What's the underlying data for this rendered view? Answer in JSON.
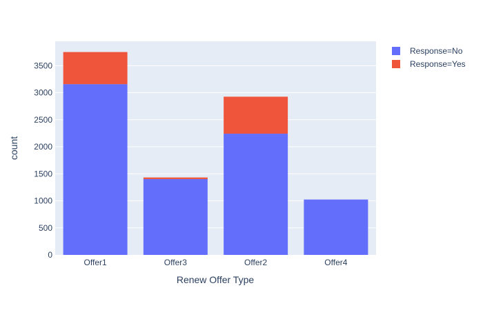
{
  "chart_data": {
    "type": "bar",
    "barmode": "stack",
    "categories": [
      "Offer1",
      "Offer3",
      "Offer2",
      "Offer4"
    ],
    "series": [
      {
        "name": "Response=No",
        "color": "#636efa",
        "values": [
          3158,
          1402,
          2242,
          1024
        ]
      },
      {
        "name": "Response=Yes",
        "color": "#ef553b",
        "values": [
          594,
          30,
          684,
          0
        ]
      }
    ],
    "xlabel": "Renew Offer Type",
    "ylabel": "count",
    "ylim": [
      0,
      3950
    ],
    "yticks": [
      0,
      500,
      1000,
      1500,
      2000,
      2500,
      3000,
      3500
    ],
    "grid": true,
    "legend_position": "top-right",
    "colors": {
      "plot_background": "#e5ecf6",
      "grid": "#ffffff",
      "text": "#2a3f5f"
    }
  }
}
